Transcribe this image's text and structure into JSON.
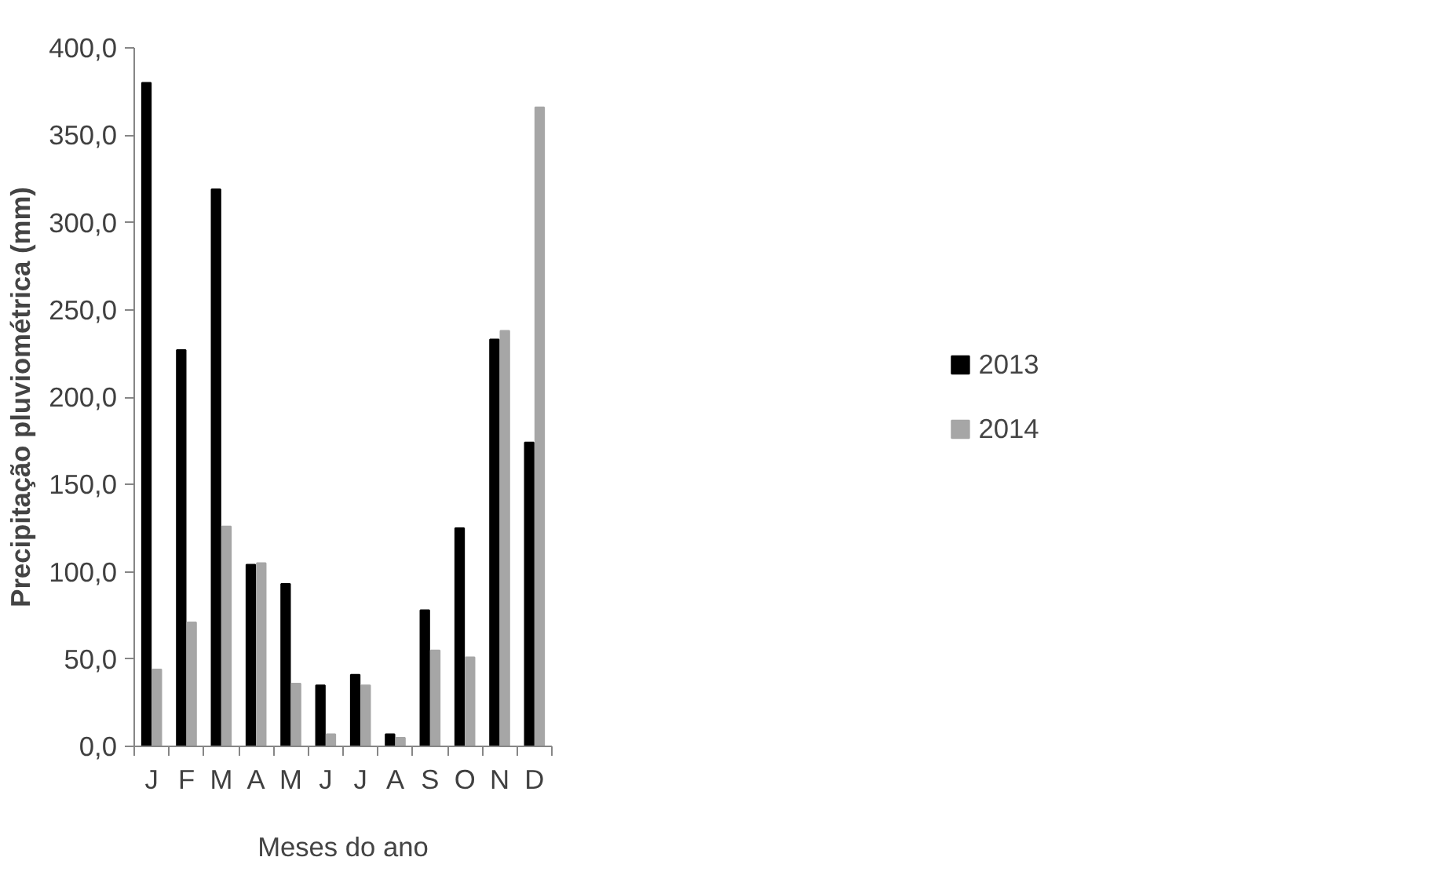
{
  "chart_data": {
    "type": "bar",
    "xlabel": "Meses do ano",
    "ylabel": "Precipitação pluviométrica (mm)",
    "categories": [
      "J",
      "F",
      "M",
      "A",
      "M",
      "J",
      "J",
      "A",
      "S",
      "O",
      "N",
      "D"
    ],
    "series": [
      {
        "name": "2013",
        "color": "#000000",
        "values": [
          380,
          227,
          319,
          104,
          93,
          35,
          41,
          7,
          78,
          125,
          233,
          174
        ]
      },
      {
        "name": "2014",
        "color": "#a6a6a6",
        "values": [
          44,
          71,
          126,
          105,
          36,
          7,
          35,
          5,
          55,
          51,
          238,
          366
        ]
      }
    ],
    "ylim": [
      0,
      400
    ],
    "yticks": [
      {
        "value": 0,
        "label": "0,0"
      },
      {
        "value": 50,
        "label": "50,0"
      },
      {
        "value": 100,
        "label": "100,0"
      },
      {
        "value": 150,
        "label": "150,0"
      },
      {
        "value": 200,
        "label": "200,0"
      },
      {
        "value": 250,
        "label": "250,0"
      },
      {
        "value": 300,
        "label": "300,0"
      },
      {
        "value": 350,
        "label": "350,0"
      },
      {
        "value": 400,
        "label": "400,0"
      }
    ],
    "grid": false,
    "legend": "right"
  }
}
